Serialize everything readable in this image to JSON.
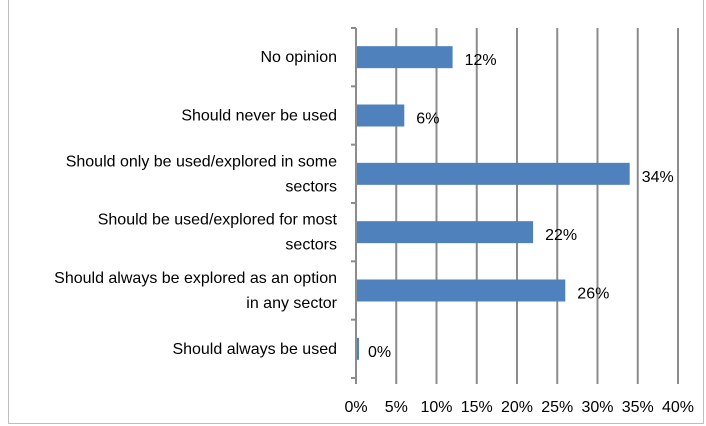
{
  "chart_data": {
    "type": "bar",
    "orientation": "horizontal",
    "categories": [
      [
        "No opinion"
      ],
      [
        "Should never be used"
      ],
      [
        "Should only be used/explored in some",
        "sectors"
      ],
      [
        "Should be used/explored for most",
        "sectors"
      ],
      [
        "Should always be explored as an option",
        "in any sector"
      ],
      [
        "Should always be used"
      ]
    ],
    "values": [
      12,
      6,
      34,
      22,
      26,
      0
    ],
    "data_labels": [
      "12%",
      "6%",
      "34%",
      "22%",
      "26%",
      "0%"
    ],
    "xlim": [
      0,
      40
    ],
    "x_ticks": [
      0,
      5,
      10,
      15,
      20,
      25,
      30,
      35,
      40
    ],
    "x_tick_labels": [
      "0%",
      "5%",
      "10%",
      "15%",
      "20%",
      "25%",
      "30%",
      "35%",
      "40%"
    ],
    "grid": "vertical",
    "legend": "none",
    "bar_color": "#4f81bd",
    "grid_color": "#8c8c8c"
  }
}
